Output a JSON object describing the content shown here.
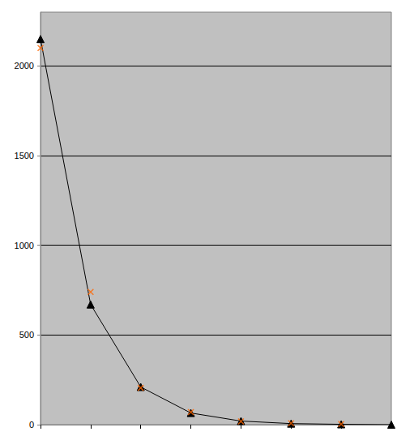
{
  "chart_data": {
    "type": "line",
    "categories": [
      null,
      null,
      null,
      null,
      null,
      null,
      null,
      null
    ],
    "series": [
      {
        "type": "line",
        "marker": "triangle",
        "line_style": "solid",
        "color": "#000000",
        "values": [
          2150,
          670,
          210,
          65,
          20,
          6,
          2,
          0
        ]
      },
      {
        "type": "scatter",
        "marker": "x",
        "color": "#ff6600",
        "values": [
          2100,
          740,
          205,
          70,
          18,
          8,
          3,
          null
        ]
      }
    ],
    "ylim": [
      0,
      2300
    ],
    "yticks": [
      0,
      500,
      1000,
      1500,
      2000
    ],
    "grid": true,
    "tick_labels": "y"
  }
}
